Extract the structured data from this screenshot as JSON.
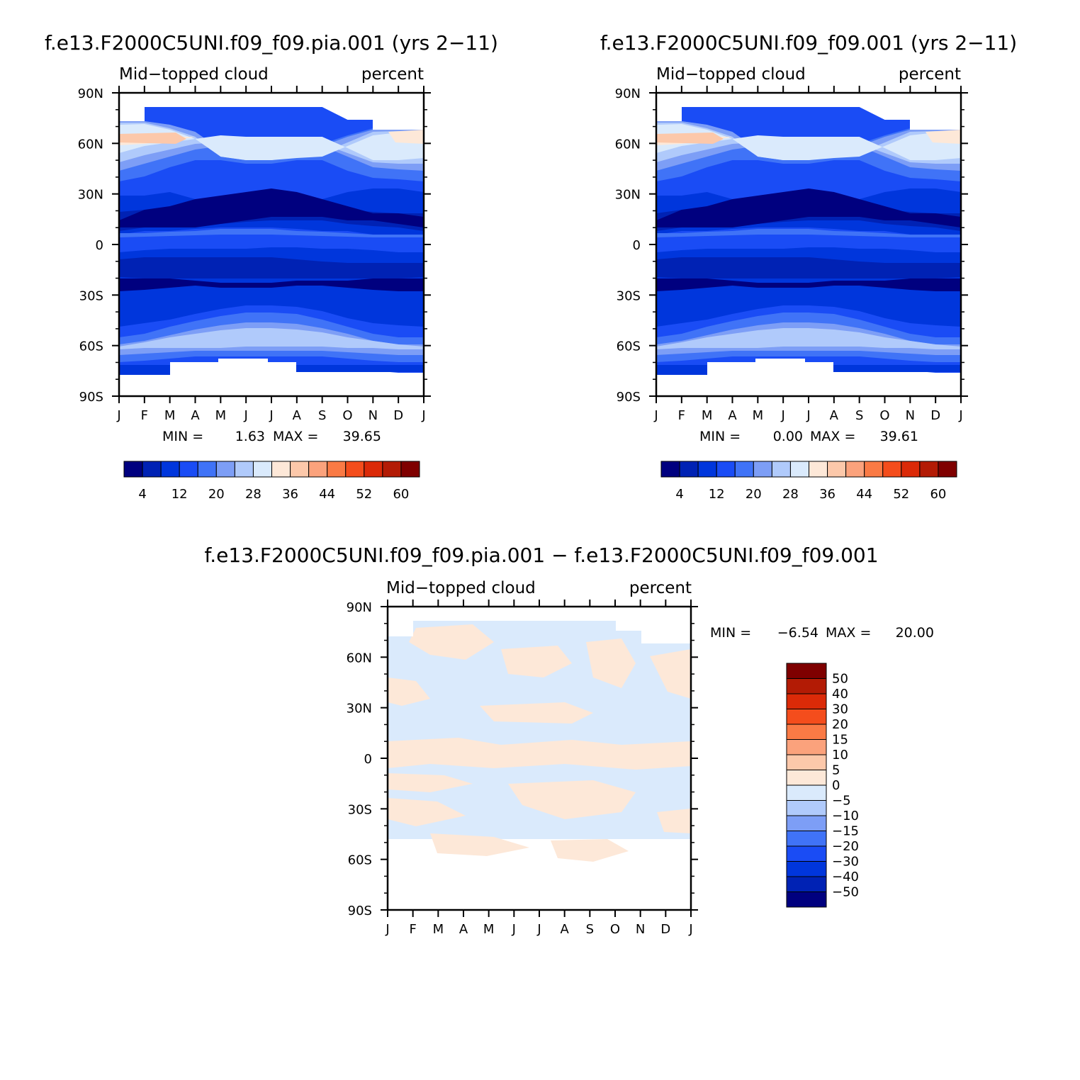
{
  "panels": [
    {
      "title": "f.e13.F2000C5UNI.f09_f09.pia.001 (yrs 2−11)",
      "left_label": "Mid−topped cloud",
      "right_label": "percent",
      "min_label": "MIN =",
      "min_value": "1.63",
      "max_label": "MAX =",
      "max_value": "39.65",
      "colorbar_labels": [
        "4",
        "12",
        "20",
        "28",
        "36",
        "44",
        "52",
        "60"
      ]
    },
    {
      "title": "f.e13.F2000C5UNI.f09_f09.001 (yrs 2−11)",
      "left_label": "Mid−topped cloud",
      "right_label": "percent",
      "min_label": "MIN =",
      "min_value": "0.00",
      "max_label": "MAX =",
      "max_value": "39.61",
      "colorbar_labels": [
        "4",
        "12",
        "20",
        "28",
        "36",
        "44",
        "52",
        "60"
      ]
    },
    {
      "title": "f.e13.F2000C5UNI.f09_f09.pia.001 − f.e13.F2000C5UNI.f09_f09.001",
      "left_label": "Mid−topped cloud",
      "right_label": "percent",
      "min_label": "MIN =",
      "min_value": "−6.54",
      "max_label": "MAX =",
      "max_value": "20.00",
      "colorbar_labels": [
        "50",
        "40",
        "30",
        "20",
        "15",
        "10",
        "5",
        "0",
        "−5",
        "−10",
        "−15",
        "−20",
        "−30",
        "−40",
        "−50"
      ]
    }
  ],
  "axes": {
    "x_ticks": [
      "J",
      "F",
      "M",
      "A",
      "M",
      "J",
      "J",
      "A",
      "S",
      "O",
      "N",
      "D",
      "J"
    ],
    "y_ticks": [
      "90N",
      "60N",
      "30N",
      "0",
      "30S",
      "60S",
      "90S"
    ]
  },
  "colors": {
    "abs_scale": [
      "#00007f",
      "#0022b4",
      "#0036dc",
      "#1a4cf5",
      "#4073f7",
      "#7d9ef6",
      "#b0cafb",
      "#daeafc",
      "#fde8d8",
      "#fcc8aa",
      "#fba27c",
      "#fa7a45",
      "#f44d1c",
      "#db2a08",
      "#b31b05",
      "#7f0000"
    ],
    "diff_scale": [
      "#00007f",
      "#0022b4",
      "#0036dc",
      "#1a4cf5",
      "#4073f7",
      "#7d9ef6",
      "#b0cafb",
      "#daeafc",
      "#fde8d8",
      "#fcc8aa",
      "#fba27c",
      "#fa7a45",
      "#f44d1c",
      "#db2a08",
      "#b31b05",
      "#7f0000"
    ]
  },
  "chart_data": [
    {
      "type": "heatmap",
      "title": "f.e13.F2000C5UNI.f09_f09.pia.001 (yrs 2−11)",
      "variable": "Mid−topped cloud",
      "units": "percent",
      "x": [
        "J",
        "F",
        "M",
        "A",
        "M",
        "J",
        "J",
        "A",
        "S",
        "O",
        "N",
        "D",
        "J"
      ],
      "y": [
        "90N",
        "60N",
        "30N",
        "0",
        "30S",
        "60S",
        "90S"
      ],
      "levels": [
        4,
        8,
        12,
        16,
        20,
        24,
        28,
        32,
        36,
        40,
        44,
        48,
        52,
        56,
        60
      ],
      "min": 1.63,
      "max": 39.65,
      "values_by_latitude_row": [
        [
          null,
          null,
          null,
          null,
          null,
          null,
          null,
          null,
          null,
          null,
          null,
          null,
          null
        ],
        [
          31,
          28,
          20,
          14,
          10,
          9,
          9,
          10,
          14,
          20,
          27,
          31,
          31
        ],
        [
          16,
          15,
          12,
          9,
          7,
          5,
          4,
          5,
          8,
          11,
          14,
          16,
          16
        ],
        [
          11,
          10,
          11,
          12,
          13,
          13,
          12,
          12,
          12,
          12,
          11,
          11,
          11
        ],
        [
          7,
          7,
          7,
          6,
          6,
          6,
          6,
          6,
          6,
          7,
          7,
          7,
          7
        ],
        [
          18,
          20,
          23,
          25,
          27,
          28,
          28,
          27,
          25,
          22,
          19,
          17,
          18
        ],
        [
          null,
          null,
          null,
          null,
          null,
          null,
          null,
          null,
          null,
          null,
          null,
          null,
          null
        ]
      ]
    },
    {
      "type": "heatmap",
      "title": "f.e13.F2000C5UNI.f09_f09.001 (yrs 2−11)",
      "variable": "Mid−topped cloud",
      "units": "percent",
      "x": [
        "J",
        "F",
        "M",
        "A",
        "M",
        "J",
        "J",
        "A",
        "S",
        "O",
        "N",
        "D",
        "J"
      ],
      "y": [
        "90N",
        "60N",
        "30N",
        "0",
        "30S",
        "60S",
        "90S"
      ],
      "levels": [
        4,
        8,
        12,
        16,
        20,
        24,
        28,
        32,
        36,
        40,
        44,
        48,
        52,
        56,
        60
      ],
      "min": 0.0,
      "max": 39.61,
      "values_by_latitude_row": [
        [
          null,
          null,
          null,
          null,
          null,
          null,
          null,
          null,
          null,
          null,
          null,
          null,
          null
        ],
        [
          30,
          27,
          20,
          14,
          10,
          9,
          9,
          10,
          14,
          20,
          27,
          30,
          30
        ],
        [
          15,
          14,
          11,
          8,
          6,
          5,
          4,
          5,
          7,
          10,
          13,
          15,
          15
        ],
        [
          10,
          10,
          11,
          12,
          12,
          12,
          12,
          12,
          12,
          11,
          11,
          10,
          10
        ],
        [
          6,
          6,
          6,
          6,
          6,
          6,
          6,
          6,
          6,
          6,
          6,
          6,
          6
        ],
        [
          18,
          20,
          22,
          25,
          27,
          27,
          27,
          26,
          24,
          21,
          19,
          17,
          18
        ],
        [
          null,
          null,
          null,
          null,
          null,
          null,
          null,
          null,
          null,
          null,
          null,
          null,
          null
        ]
      ]
    },
    {
      "type": "heatmap",
      "title": "f.e13.F2000C5UNI.f09_f09.pia.001 − f.e13.F2000C5UNI.f09_f09.001",
      "variable": "Mid−topped cloud",
      "units": "percent",
      "x": [
        "J",
        "F",
        "M",
        "A",
        "M",
        "J",
        "J",
        "A",
        "S",
        "O",
        "N",
        "D",
        "J"
      ],
      "y": [
        "90N",
        "60N",
        "30N",
        "0",
        "30S",
        "60S",
        "90S"
      ],
      "levels": [
        -50,
        -40,
        -30,
        -20,
        -15,
        -10,
        -5,
        0,
        5,
        10,
        15,
        20,
        30,
        40,
        50
      ],
      "min": -6.54,
      "max": 20.0,
      "values_by_latitude_row": [
        [
          null,
          null,
          null,
          null,
          null,
          null,
          null,
          null,
          null,
          null,
          null,
          null,
          null
        ],
        [
          1,
          1,
          -1,
          -1,
          1,
          -1,
          -1,
          1,
          1,
          -1,
          1,
          -1,
          1
        ],
        [
          1,
          -1,
          1,
          -1,
          -1,
          1,
          -1,
          -1,
          -1,
          1,
          -1,
          -1,
          1
        ],
        [
          1,
          1,
          -1,
          -1,
          1,
          1,
          1,
          -1,
          1,
          1,
          -1,
          1,
          1
        ],
        [
          1,
          -1,
          1,
          1,
          1,
          -1,
          1,
          1,
          -1,
          1,
          -1,
          1,
          1
        ],
        [
          -1,
          1,
          -1,
          -1,
          -1,
          1,
          -1,
          1,
          -1,
          -1,
          1,
          -1,
          -1
        ],
        [
          null,
          null,
          null,
          null,
          null,
          null,
          null,
          null,
          null,
          null,
          null,
          null,
          null
        ]
      ]
    }
  ]
}
